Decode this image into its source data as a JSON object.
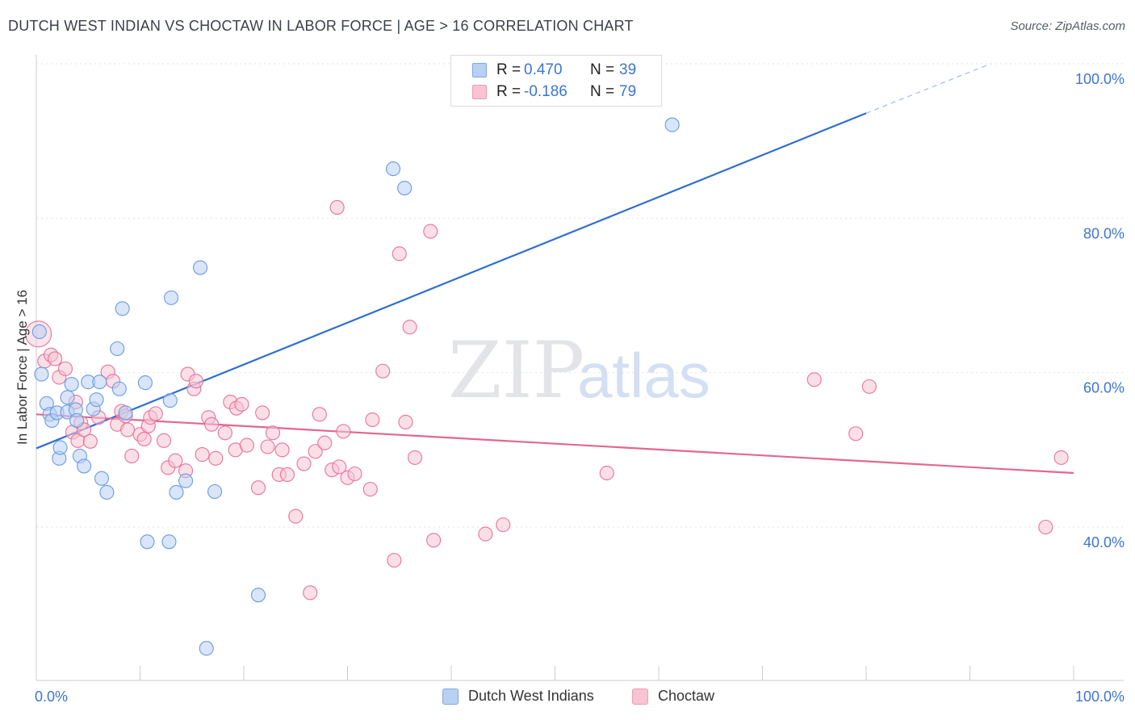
{
  "title": "DUTCH WEST INDIAN VS CHOCTAW IN LABOR FORCE | AGE > 16 CORRELATION CHART",
  "source": "Source: ZipAtlas.com",
  "watermark": {
    "zip": "ZIP",
    "atlas": "atlas"
  },
  "legend": {
    "r_label": "R =",
    "n_label": "N =",
    "entries": [
      {
        "name": "Dutch West Indians",
        "r": "0.470",
        "n": "39",
        "fill": "#b9d0f3",
        "stroke": "#7fa6e3"
      },
      {
        "name": "Choctaw",
        "r": "-0.186",
        "n": "79",
        "fill": "#f8c4d4",
        "stroke": "#ec9ab3"
      }
    ]
  },
  "chart_data": {
    "type": "scatter",
    "xlabel": "",
    "ylabel": "In Labor Force | Age > 16",
    "xlim": [
      0,
      100
    ],
    "ylim": [
      20,
      103
    ],
    "x_tick_labels": [
      {
        "value": 0,
        "label": "0.0%"
      },
      {
        "value": 100,
        "label": "100.0%"
      }
    ],
    "y_tick_labels": [
      {
        "value": 100,
        "label": "100.0%"
      },
      {
        "value": 80,
        "label": "80.0%"
      },
      {
        "value": 60,
        "label": "60.0%"
      },
      {
        "value": 40,
        "label": "40.0%"
      }
    ],
    "series": [
      {
        "name": "Dutch West Indians",
        "color": "#6a9be0",
        "fill": "#b9d0f3",
        "trend": {
          "x0": 0,
          "y0": 50.2,
          "x1": 80,
          "y1": 93.6,
          "x_dash_end": 92,
          "y_dash_end": 100.0
        },
        "points": [
          [
            0.3,
            65.3
          ],
          [
            0.5,
            59.8
          ],
          [
            1.0,
            56.0
          ],
          [
            1.3,
            54.6
          ],
          [
            1.5,
            53.8
          ],
          [
            2.0,
            54.8
          ],
          [
            2.2,
            48.9
          ],
          [
            2.3,
            50.3
          ],
          [
            3.0,
            54.9
          ],
          [
            3.0,
            56.8
          ],
          [
            3.4,
            58.5
          ],
          [
            3.8,
            55.2
          ],
          [
            3.9,
            53.8
          ],
          [
            4.2,
            49.2
          ],
          [
            4.6,
            47.9
          ],
          [
            5.0,
            58.8
          ],
          [
            5.5,
            55.3
          ],
          [
            5.8,
            56.5
          ],
          [
            6.1,
            58.8
          ],
          [
            6.3,
            46.3
          ],
          [
            6.8,
            44.5
          ],
          [
            7.8,
            63.1
          ],
          [
            8.0,
            57.9
          ],
          [
            8.3,
            68.3
          ],
          [
            8.6,
            54.8
          ],
          [
            10.5,
            58.7
          ],
          [
            10.7,
            38.1
          ],
          [
            12.8,
            38.1
          ],
          [
            12.9,
            56.4
          ],
          [
            13.0,
            69.7
          ],
          [
            13.5,
            44.5
          ],
          [
            14.4,
            46.0
          ],
          [
            15.8,
            73.6
          ],
          [
            16.4,
            24.3
          ],
          [
            17.2,
            44.6
          ],
          [
            21.4,
            31.2
          ],
          [
            34.4,
            86.4
          ],
          [
            35.5,
            83.9
          ],
          [
            61.3,
            92.1
          ]
        ]
      },
      {
        "name": "Choctaw",
        "color": "#e6739c",
        "fill": "#f8c4d4",
        "trend": {
          "x0": 0,
          "y0": 54.6,
          "x1": 100,
          "y1": 47.0
        },
        "points": [
          [
            0.2,
            65.0
          ],
          [
            0.8,
            61.5
          ],
          [
            1.4,
            62.3
          ],
          [
            1.8,
            61.8
          ],
          [
            2.2,
            59.4
          ],
          [
            2.8,
            60.5
          ],
          [
            3.5,
            52.3
          ],
          [
            3.8,
            56.2
          ],
          [
            4.0,
            51.2
          ],
          [
            4.3,
            53.5
          ],
          [
            4.6,
            52.6
          ],
          [
            5.2,
            51.1
          ],
          [
            6.0,
            54.2
          ],
          [
            6.9,
            60.1
          ],
          [
            7.4,
            58.9
          ],
          [
            7.8,
            53.3
          ],
          [
            8.2,
            55.0
          ],
          [
            8.6,
            54.4
          ],
          [
            8.8,
            52.6
          ],
          [
            9.2,
            49.2
          ],
          [
            10.0,
            52.0
          ],
          [
            10.4,
            51.4
          ],
          [
            10.8,
            53.1
          ],
          [
            11.0,
            54.2
          ],
          [
            11.5,
            54.7
          ],
          [
            12.3,
            51.2
          ],
          [
            12.7,
            47.7
          ],
          [
            13.4,
            48.6
          ],
          [
            14.4,
            47.3
          ],
          [
            14.6,
            59.8
          ],
          [
            15.2,
            57.9
          ],
          [
            15.4,
            58.9
          ],
          [
            16.0,
            49.4
          ],
          [
            16.6,
            54.2
          ],
          [
            16.9,
            53.3
          ],
          [
            17.3,
            48.9
          ],
          [
            18.2,
            52.2
          ],
          [
            18.7,
            56.2
          ],
          [
            19.2,
            50.0
          ],
          [
            19.3,
            55.4
          ],
          [
            19.8,
            55.9
          ],
          [
            20.3,
            50.6
          ],
          [
            21.4,
            45.1
          ],
          [
            21.8,
            54.8
          ],
          [
            22.3,
            50.4
          ],
          [
            22.8,
            52.2
          ],
          [
            23.4,
            46.8
          ],
          [
            23.7,
            50.0
          ],
          [
            24.2,
            46.8
          ],
          [
            25.0,
            41.4
          ],
          [
            25.8,
            48.2
          ],
          [
            26.4,
            31.5
          ],
          [
            26.9,
            49.8
          ],
          [
            27.3,
            54.6
          ],
          [
            27.8,
            50.9
          ],
          [
            28.5,
            47.4
          ],
          [
            29.0,
            81.4
          ],
          [
            29.2,
            47.8
          ],
          [
            29.6,
            52.4
          ],
          [
            30.0,
            46.4
          ],
          [
            30.7,
            46.9
          ],
          [
            32.2,
            44.9
          ],
          [
            32.4,
            53.9
          ],
          [
            33.4,
            60.2
          ],
          [
            34.5,
            35.7
          ],
          [
            35.0,
            75.4
          ],
          [
            35.6,
            53.6
          ],
          [
            36.0,
            65.9
          ],
          [
            36.5,
            49.0
          ],
          [
            38.0,
            78.3
          ],
          [
            38.3,
            38.3
          ],
          [
            43.3,
            39.1
          ],
          [
            45.0,
            40.3
          ],
          [
            75.0,
            59.1
          ],
          [
            79.0,
            52.1
          ],
          [
            80.3,
            58.2
          ],
          [
            97.3,
            40.0
          ],
          [
            98.8,
            49.0
          ],
          [
            55.0,
            47.0
          ]
        ]
      }
    ]
  }
}
